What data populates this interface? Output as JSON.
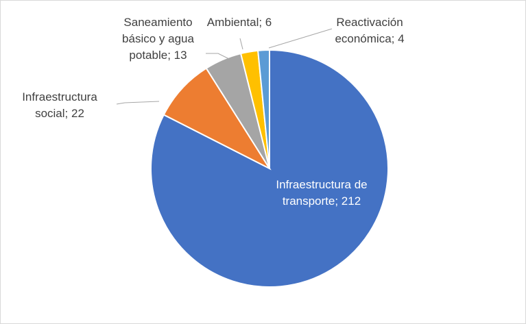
{
  "chart_data": {
    "type": "pie",
    "values": [
      212,
      22,
      13,
      6,
      4
    ],
    "value_labels": [
      "Infraestructura de transporte; 212",
      "Infraestructura social; 22",
      "Saneamiento básico y agua potable; 13",
      "Ambiental; 6",
      "Reactivación económica; 4"
    ],
    "colors": [
      "#4472c4",
      "#ed7d31",
      "#a5a5a5",
      "#ffc000",
      "#5b9bd5"
    ]
  }
}
